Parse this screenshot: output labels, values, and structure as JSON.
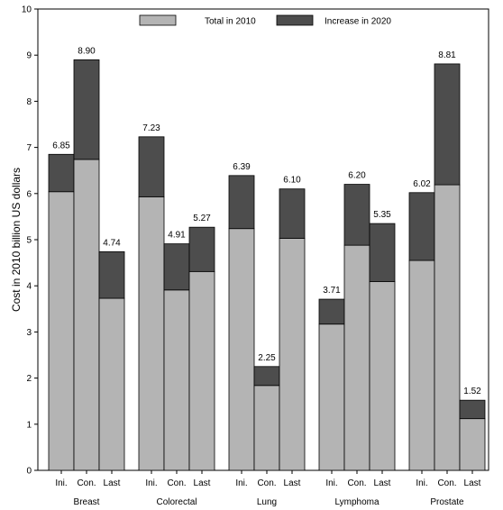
{
  "chart_data": {
    "type": "bar",
    "stacked": true,
    "ylabel": "Cost in 2010 billion US dollars",
    "ylim": [
      0,
      10
    ],
    "yticks": [
      "0",
      "1",
      "2",
      "3",
      "4",
      "5",
      "6",
      "7",
      "8",
      "9",
      "10"
    ],
    "legend": {
      "placement": "top-center",
      "items": [
        {
          "name": "Total in 2010",
          "color": "#b4b4b4"
        },
        {
          "name": "Increase in 2020",
          "color": "#4d4d4d"
        }
      ]
    },
    "groups": [
      {
        "name": "Breast",
        "categories": [
          "Ini.",
          "Con.",
          "Last"
        ],
        "total_2010": [
          6.04,
          6.74,
          3.73
        ],
        "increase_2020": [
          0.81,
          2.16,
          1.01
        ],
        "labels": [
          "6.85",
          "8.90",
          "4.74"
        ]
      },
      {
        "name": "Colorectal",
        "categories": [
          "Ini.",
          "Con.",
          "Last"
        ],
        "total_2010": [
          5.93,
          3.91,
          4.31
        ],
        "increase_2020": [
          1.3,
          1.0,
          0.96
        ],
        "labels": [
          "7.23",
          "4.91",
          "5.27"
        ]
      },
      {
        "name": "Lung",
        "categories": [
          "Ini.",
          "Con.",
          "Last"
        ],
        "total_2010": [
          5.24,
          1.84,
          5.03
        ],
        "increase_2020": [
          1.15,
          0.41,
          1.07
        ],
        "labels": [
          "6.39",
          "2.25",
          "6.10"
        ]
      },
      {
        "name": "Lymphoma",
        "categories": [
          "Ini.",
          "Con.",
          "Last"
        ],
        "total_2010": [
          3.17,
          4.88,
          4.09
        ],
        "increase_2020": [
          0.54,
          1.32,
          1.26
        ],
        "labels": [
          "3.71",
          "6.20",
          "5.35"
        ]
      },
      {
        "name": "Prostate",
        "categories": [
          "Ini.",
          "Con.",
          "Last"
        ],
        "total_2010": [
          4.55,
          6.19,
          1.12
        ],
        "increase_2020": [
          1.47,
          2.62,
          0.4
        ],
        "labels": [
          "6.02",
          "8.81",
          "1.52"
        ]
      }
    ]
  }
}
